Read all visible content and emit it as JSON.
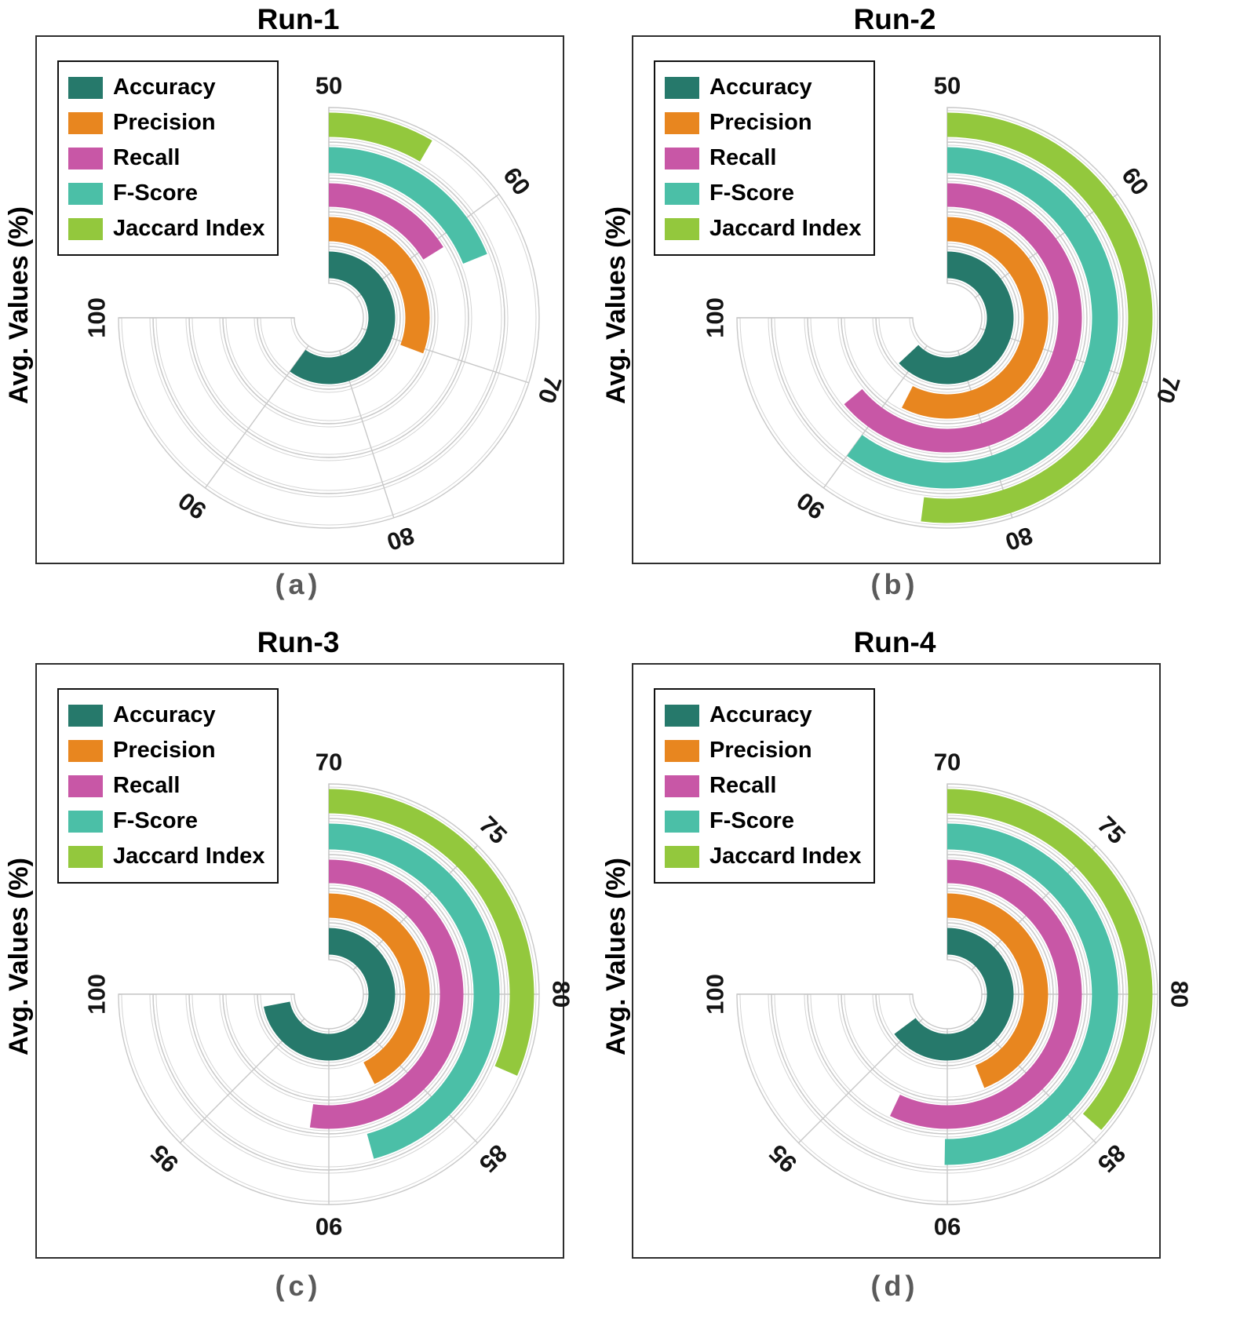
{
  "figure": {
    "ylabel": "Avg. Values (%)",
    "grid_color": "#C8C8C8",
    "background": "#FFFFFF"
  },
  "legend": {
    "position": "upper left",
    "items": [
      {
        "label": "Accuracy",
        "color": "#26796B"
      },
      {
        "label": "Precision",
        "color": "#E8861F"
      },
      {
        "label": "Recall",
        "color": "#C857A6"
      },
      {
        "label": "F-Score",
        "color": "#4BBFA7"
      },
      {
        "label": "Jaccard Index",
        "color": "#93C83D"
      }
    ]
  },
  "chart_data": [
    {
      "type": "polar_bar",
      "title": "Run-1",
      "panel_label": "(a)",
      "ylabel": "Avg. Values (%)",
      "angular_axis": {
        "min": 50,
        "max": 100,
        "ticks": [
          50,
          60,
          70,
          80,
          90,
          100
        ],
        "sweep_deg": 270,
        "start": "top",
        "direction": "clockwise",
        "unit": "%"
      },
      "series": [
        {
          "name": "Accuracy",
          "value": 90.0
        },
        {
          "name": "Precision",
          "value": 70.5
        },
        {
          "name": "Recall",
          "value": 60.8
        },
        {
          "name": "F-Score",
          "value": 62.6
        },
        {
          "name": "Jaccard Index",
          "value": 55.6
        }
      ]
    },
    {
      "type": "polar_bar",
      "title": "Run-2",
      "panel_label": "(b)",
      "ylabel": "Avg. Values (%)",
      "angular_axis": {
        "min": 50,
        "max": 100,
        "ticks": [
          50,
          60,
          70,
          80,
          90,
          100
        ],
        "sweep_deg": 270,
        "start": "top",
        "direction": "clockwise",
        "unit": "%"
      },
      "series": [
        {
          "name": "Accuracy",
          "value": 92.0
        },
        {
          "name": "Precision",
          "value": 88.3
        },
        {
          "name": "Recall",
          "value": 92.6
        },
        {
          "name": "F-Score",
          "value": 90.0
        },
        {
          "name": "Jaccard Index",
          "value": 84.7
        }
      ]
    },
    {
      "type": "polar_bar",
      "title": "Run-3",
      "panel_label": "(c)",
      "ylabel": "Avg. Values (%)",
      "angular_axis": {
        "min": 70,
        "max": 100,
        "ticks": [
          70,
          75,
          80,
          85,
          90,
          95,
          100
        ],
        "sweep_deg": 270,
        "start": "top",
        "direction": "clockwise",
        "unit": "%"
      },
      "series": [
        {
          "name": "Accuracy",
          "value": 98.8
        },
        {
          "name": "Precision",
          "value": 87.0
        },
        {
          "name": "Recall",
          "value": 90.9
        },
        {
          "name": "F-Score",
          "value": 88.3
        },
        {
          "name": "Jaccard Index",
          "value": 82.6
        }
      ]
    },
    {
      "type": "polar_bar",
      "title": "Run-4",
      "panel_label": "(d)",
      "ylabel": "Avg. Values (%)",
      "angular_axis": {
        "min": 70,
        "max": 100,
        "ticks": [
          70,
          75,
          80,
          85,
          90,
          95,
          100
        ],
        "sweep_deg": 270,
        "start": "top",
        "direction": "clockwise",
        "unit": "%"
      },
      "series": [
        {
          "name": "Accuracy",
          "value": 95.9
        },
        {
          "name": "Precision",
          "value": 87.6
        },
        {
          "name": "Recall",
          "value": 92.8
        },
        {
          "name": "F-Score",
          "value": 90.1
        },
        {
          "name": "Jaccard Index",
          "value": 84.6
        }
      ]
    }
  ]
}
